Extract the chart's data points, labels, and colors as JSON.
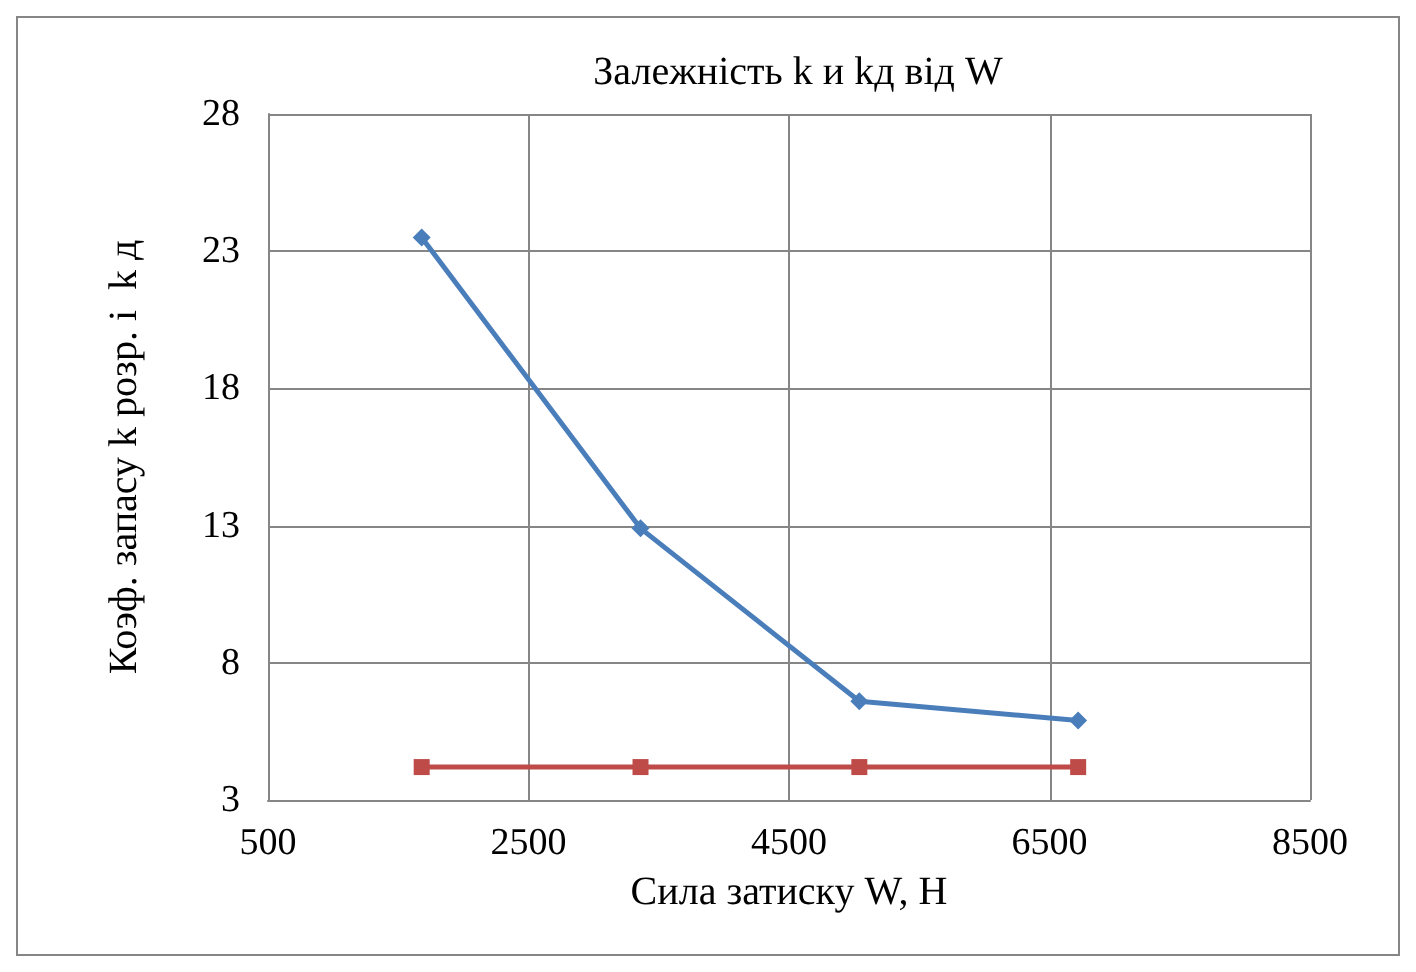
{
  "chart_data": {
    "type": "line",
    "title": "Залежність k и kд від W",
    "xlabel": "Сила затиску W, Н",
    "ylabel": "Коэф. запасу k розр. і  k д",
    "x": [
      1680,
      3360,
      5040,
      6720
    ],
    "series": [
      {
        "color": "#4a7ebb",
        "marker": "diamond",
        "values": [
          23.5,
          12.9,
          6.6,
          5.9
        ]
      },
      {
        "color": "#be4b48",
        "marker": "square",
        "values": [
          4.2,
          4.2,
          4.2,
          4.2
        ]
      }
    ],
    "xlim": [
      500,
      8500
    ],
    "xticks": [
      500,
      2500,
      4500,
      6500,
      8500
    ],
    "ylim": [
      3,
      28
    ],
    "yticks": [
      3,
      8,
      13,
      18,
      23,
      28
    ],
    "grid": true,
    "line_style": "solid"
  }
}
